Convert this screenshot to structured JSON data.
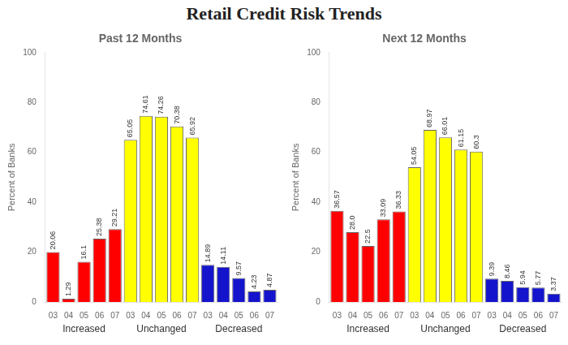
{
  "title": "Retail Credit Risk Trends",
  "chart_data": [
    {
      "type": "bar",
      "title": "Past 12 Months",
      "ylabel": "Percent of Banks",
      "categories": [
        "03",
        "04",
        "05",
        "06",
        "07"
      ],
      "series": [
        {
          "name": "Increased",
          "color": "#FF0000",
          "values": [
            20.06,
            1.29,
            16.1,
            25.38,
            29.21
          ],
          "value_labels": [
            "20.06",
            "1.29",
            "16.1",
            "25.38",
            "29.21"
          ]
        },
        {
          "name": "Unchanged",
          "color": "#FFFF00",
          "values": [
            65.05,
            74.61,
            74.26,
            70.38,
            65.92
          ],
          "value_labels": [
            "65.05",
            "74.61",
            "74.26",
            "70.38",
            "65.92"
          ]
        },
        {
          "name": "Decreased",
          "color": "#1414CC",
          "values": [
            14.89,
            14.11,
            9.57,
            4.23,
            4.87
          ],
          "value_labels": [
            "14.89",
            "14.11",
            "9.57",
            "4.23",
            "4.87"
          ]
        }
      ],
      "ylim": [
        0,
        100
      ],
      "yticks": [
        0,
        20,
        40,
        60,
        80,
        100
      ],
      "grid": false,
      "data_labels": true
    },
    {
      "type": "bar",
      "title": "Next 12 Months",
      "ylabel": "Percent of Banks",
      "categories": [
        "03",
        "04",
        "05",
        "06",
        "07"
      ],
      "series": [
        {
          "name": "Increased",
          "color": "#FF0000",
          "values": [
            36.57,
            28.0,
            22.5,
            33.09,
            36.33
          ],
          "value_labels": [
            "36.57",
            "28.0",
            "22.5",
            "33.09",
            "36.33"
          ]
        },
        {
          "name": "Unchanged",
          "color": "#FFFF00",
          "values": [
            54.05,
            68.97,
            66.01,
            61.15,
            60.3
          ],
          "value_labels": [
            "54.05",
            "68.97",
            "66.01",
            "61.15",
            "60.3"
          ]
        },
        {
          "name": "Decreased",
          "color": "#1414CC",
          "values": [
            9.39,
            8.46,
            5.94,
            5.77,
            3.37
          ],
          "value_labels": [
            "9.39",
            "8.46",
            "5.94",
            "5.77",
            "3.37"
          ]
        }
      ],
      "ylim": [
        0,
        100
      ],
      "yticks": [
        0,
        20,
        40,
        60,
        80,
        100
      ],
      "grid": false,
      "data_labels": true
    }
  ]
}
